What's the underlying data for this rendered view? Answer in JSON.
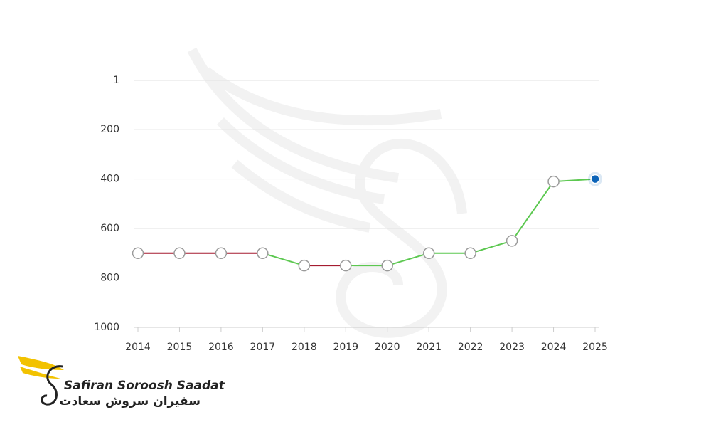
{
  "chart_data": {
    "type": "line",
    "x": [
      2014,
      2015,
      2016,
      2017,
      2018,
      2019,
      2020,
      2021,
      2022,
      2023,
      2024,
      2025
    ],
    "xlim": [
      2014,
      2025
    ],
    "xticks": [
      2014,
      2015,
      2016,
      2017,
      2018,
      2019,
      2020,
      2021,
      2022,
      2023,
      2024,
      2025
    ],
    "series": [
      {
        "values": [
          700,
          700,
          700,
          700,
          750,
          750,
          750,
          700,
          700,
          650,
          410,
          400
        ],
        "segment_colors": [
          "#a51c30",
          "#a51c30",
          "#a51c30",
          "#5cc850",
          "#a51c30",
          "#5cc850",
          "#5cc850",
          "#5cc850",
          "#5cc850",
          "#5cc850",
          "#5cc850"
        ],
        "marker_color": "#9a9a9a",
        "highlight_color": "#0b63b8"
      }
    ],
    "ylim": [
      1,
      1000
    ],
    "y_inverted": true,
    "yticks": [
      1,
      200,
      400,
      600,
      800,
      1000
    ],
    "grid": true
  },
  "logo": {
    "name": "Safiran Soroosh Saadat",
    "name_fa": "سفیران سروش سعادت"
  }
}
